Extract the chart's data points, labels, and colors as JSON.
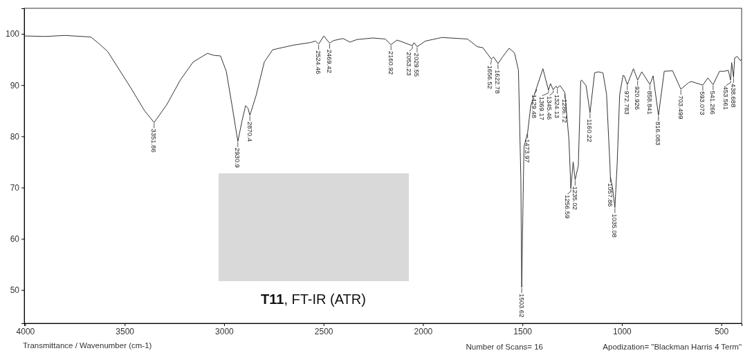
{
  "chart_data": {
    "type": "line",
    "xlabel": "Transmittance / Wavenumber (cm-1)",
    "xlim": [
      4005,
      398
    ],
    "ylim": [
      43.5,
      105
    ],
    "xticks": [
      4000,
      3500,
      3000,
      2500,
      2000,
      1500,
      1000,
      500
    ],
    "yticks": [
      50,
      60,
      70,
      80,
      90,
      100
    ],
    "x": [
      4005,
      3900,
      3800,
      3670,
      3635,
      3586,
      3468,
      3400,
      3351.86,
      3288,
      3220,
      3156,
      3084,
      3050,
      3018,
      2989,
      2960,
      2930.9,
      2910,
      2892,
      2880,
      2870.4,
      2839,
      2798,
      2756,
      2653,
      2568,
      2540,
      2524.46,
      2499,
      2469.42,
      2450,
      2402,
      2367,
      2332,
      2252,
      2190,
      2160.92,
      2130,
      2053.23,
      2045,
      2029.55,
      1988,
      1905,
      1776,
      1727,
      1699,
      1656.52,
      1645,
      1622.78,
      1600,
      1567,
      1540,
      1520,
      1508,
      1503.62,
      1495,
      1492,
      1473.97,
      1458,
      1429.48,
      1397,
      1369.17,
      1359,
      1345.46,
      1331,
      1324.13,
      1311,
      1296,
      1286.72,
      1266,
      1256.59,
      1245,
      1235.02,
      1219,
      1207,
      1203,
      1180,
      1160.22,
      1137,
      1119,
      1095,
      1077,
      1060,
      1057.86,
      1047,
      1035.08,
      1024,
      1011,
      994,
      988,
      972.783,
      942,
      920.926,
      900,
      858.841,
      843,
      816.083,
      787,
      745,
      703.499,
      664,
      651,
      593.073,
      568,
      541.266,
      509,
      485,
      465,
      453.561,
      448,
      438.688,
      433,
      420,
      405,
      398
    ],
    "series": [
      {
        "color": "#333333",
        "values": [
          99.6,
          99.5,
          99.7,
          99.4,
          98.3,
          96.6,
          89.4,
          85.0,
          82.7,
          86.2,
          91.0,
          94.5,
          96.2,
          95.8,
          95.7,
          92.7,
          86.0,
          79.0,
          83.0,
          86.0,
          85.5,
          84.1,
          88.0,
          94.5,
          96.9,
          97.8,
          98.3,
          98.6,
          98.0,
          99.6,
          98.2,
          98.7,
          99.1,
          98.4,
          98.9,
          99.2,
          99.0,
          97.9,
          98.8,
          97.7,
          98.3,
          97.5,
          98.6,
          99.3,
          99.0,
          97.5,
          97.3,
          95.1,
          95.5,
          94.2,
          95.5,
          97.2,
          96.3,
          92.9,
          71.8,
          50.5,
          72.0,
          78.0,
          80.7,
          86.0,
          89.4,
          93.2,
          89.0,
          90.3,
          89.1,
          89.8,
          89.4,
          89.9,
          89.1,
          88.5,
          79.2,
          69.8,
          75.0,
          71.5,
          74.3,
          90.8,
          91.0,
          89.9,
          84.6,
          92.4,
          92.6,
          92.4,
          88.2,
          74.4,
          72.1,
          70.0,
          66.1,
          74.4,
          88.2,
          91.9,
          91.8,
          90.1,
          93.2,
          91.0,
          92.6,
          90.1,
          91.8,
          84.1,
          92.7,
          92.8,
          89.2,
          90.5,
          90.7,
          90.0,
          91.4,
          90.1,
          92.7,
          92.7,
          92.9,
          91.0,
          94.4,
          91.5,
          95.3,
          95.6,
          94.8,
          95.0
        ]
      }
    ],
    "annotations": [
      {
        "text": "3351.86",
        "x": 3351.86,
        "y": 82.7
      },
      {
        "text": "2930.9",
        "x": 2930.9,
        "y": 79.0
      },
      {
        "text": "2870.4",
        "x": 2870.4,
        "y": 84.1
      },
      {
        "text": "2524.46",
        "x": 2524.46,
        "y": 98.0
      },
      {
        "text": "2469.42",
        "x": 2469.42,
        "y": 98.2
      },
      {
        "text": "2160.92",
        "x": 2160.92,
        "y": 97.9
      },
      {
        "text": "2053.23",
        "x": 2053.23,
        "y": 97.7
      },
      {
        "text": "2029.55",
        "x": 2029.55,
        "y": 97.5
      },
      {
        "text": "1656.52",
        "x": 1656.52,
        "y": 95.1
      },
      {
        "text": "1622.78",
        "x": 1622.78,
        "y": 94.2
      },
      {
        "text": "1503.62",
        "x": 1503.62,
        "y": 50.5
      },
      {
        "text": "1473.97",
        "x": 1473.97,
        "y": 80.7
      },
      {
        "text": "1429.48",
        "x": 1429.48,
        "y": 89.4
      },
      {
        "text": "1369.17",
        "x": 1369.17,
        "y": 89.0
      },
      {
        "text": "1345.46",
        "x": 1345.46,
        "y": 89.1
      },
      {
        "text": "1324.13",
        "x": 1324.13,
        "y": 89.4
      },
      {
        "text": "1286.72",
        "x": 1286.72,
        "y": 88.5
      },
      {
        "text": "1256.59",
        "x": 1256.59,
        "y": 69.8
      },
      {
        "text": "1235.02",
        "x": 1235.02,
        "y": 71.5
      },
      {
        "text": "1160.22",
        "x": 1160.22,
        "y": 84.6
      },
      {
        "text": "1057.86",
        "x": 1057.86,
        "y": 72.1
      },
      {
        "text": "1035.08",
        "x": 1035.08,
        "y": 66.1
      },
      {
        "text": "972.783",
        "x": 972.783,
        "y": 90.1
      },
      {
        "text": "920.926",
        "x": 920.926,
        "y": 91.0
      },
      {
        "text": "858.841",
        "x": 858.841,
        "y": 90.1
      },
      {
        "text": "816.083",
        "x": 816.083,
        "y": 84.1
      },
      {
        "text": "703.499",
        "x": 703.499,
        "y": 89.2
      },
      {
        "text": "593.073",
        "x": 593.073,
        "y": 90.0
      },
      {
        "text": "541.266",
        "x": 541.266,
        "y": 90.1
      },
      {
        "text": "453.561",
        "x": 453.561,
        "y": 91.0
      },
      {
        "text": "438.688",
        "x": 438.688,
        "y": 91.5
      },
      "T11, FT-IR (ATR)",
      "Number of Scans= 16",
      "Apodization= \"Blackman Harris 4 Term\""
    ]
  }
}
